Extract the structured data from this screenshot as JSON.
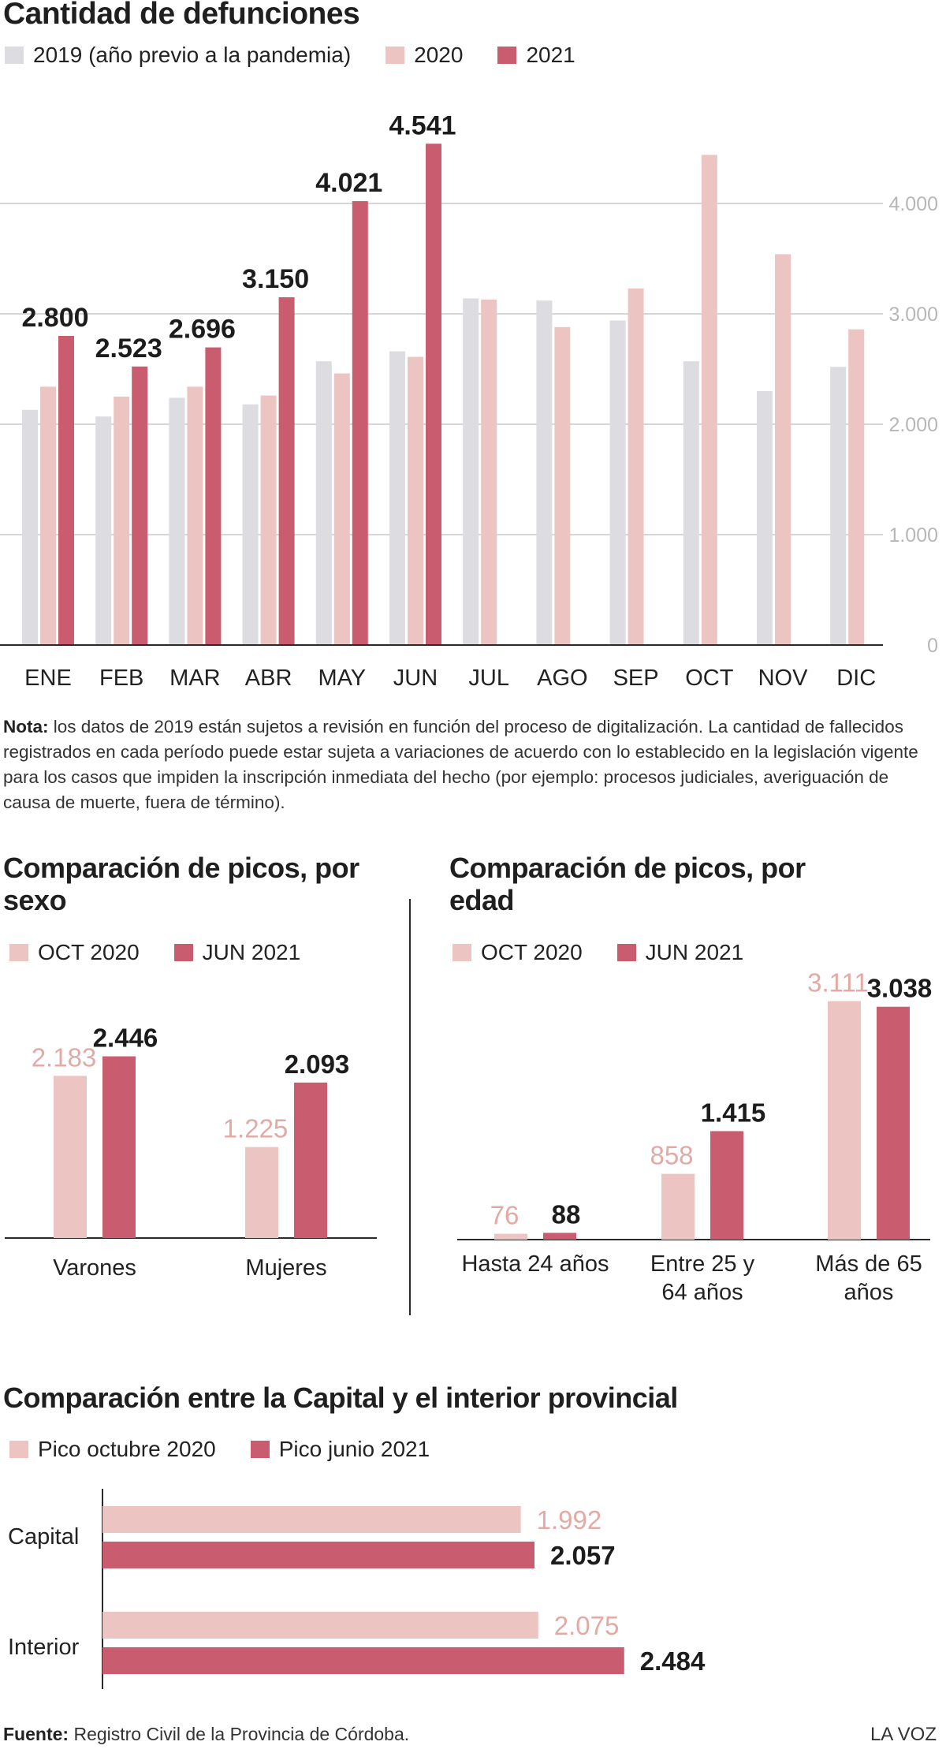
{
  "colors": {
    "c2019": "#dcdce1",
    "c2020": "#ecc4c1",
    "c2021": "#c95c6e",
    "grid": "#d6d6d6",
    "tick": "#b7b7b7",
    "label2020": "#e2aaa5"
  },
  "chart_data": [
    {
      "type": "bar",
      "title": "Cantidad de defunciones",
      "categories": [
        "ENE",
        "FEB",
        "MAR",
        "ABR",
        "MAY",
        "JUN",
        "JUL",
        "AGO",
        "SEP",
        "OCT",
        "NOV",
        "DIC"
      ],
      "series": [
        {
          "name": "2019 (año previo a la pandemia)",
          "values": [
            2130,
            2070,
            2240,
            2180,
            2570,
            2660,
            3140,
            3120,
            2940,
            2570,
            2300,
            2520
          ]
        },
        {
          "name": "2020",
          "values": [
            2340,
            2250,
            2340,
            2260,
            2460,
            2610,
            3130,
            2880,
            3230,
            4440,
            3540,
            2860
          ]
        },
        {
          "name": "2021",
          "values": [
            2800,
            2523,
            2696,
            3150,
            4021,
            4541,
            null,
            null,
            null,
            null,
            null,
            null
          ],
          "data_labels": [
            "2.800",
            "2.523",
            "2.696",
            "3.150",
            "4.021",
            "4.541"
          ]
        }
      ],
      "yticks": [
        "0",
        "1.000",
        "2.000",
        "3.000",
        "4.000"
      ],
      "ylim": [
        0,
        4600
      ],
      "grid": true,
      "legend": "top-left"
    },
    {
      "type": "bar",
      "title": "Comparación de picos, por sexo",
      "categories": [
        "Varones",
        "Mujeres"
      ],
      "series": [
        {
          "name": "OCT 2020",
          "values": [
            2183,
            1225
          ],
          "labels": [
            "2.183",
            "1.225"
          ]
        },
        {
          "name": "JUN 2021",
          "values": [
            2446,
            2093
          ],
          "labels": [
            "2.446",
            "2.093"
          ]
        }
      ],
      "legend": "top-left"
    },
    {
      "type": "bar",
      "title": "Comparación de picos, por edad",
      "categories": [
        "Hasta 24 años",
        "Entre 25 y 64 años",
        "Más de 65 años"
      ],
      "category_lines": [
        [
          "Hasta 24 años"
        ],
        [
          "Entre 25 y",
          "64 años"
        ],
        [
          "Más de 65",
          "años"
        ]
      ],
      "series": [
        {
          "name": "OCT 2020",
          "values": [
            76,
            858,
            3111
          ],
          "labels": [
            "76",
            "858",
            "3.111"
          ]
        },
        {
          "name": "JUN 2021",
          "values": [
            88,
            1415,
            3038
          ],
          "labels": [
            "88",
            "1.415",
            "3.038"
          ]
        }
      ],
      "legend": "top-left"
    },
    {
      "type": "bar",
      "orientation": "horizontal",
      "title": "Comparación entre la Capital y el interior provincial",
      "categories": [
        "Capital",
        "Interior"
      ],
      "series": [
        {
          "name": "Pico octubre 2020",
          "values": [
            1992,
            2075
          ],
          "labels": [
            "1.992",
            "2.075"
          ]
        },
        {
          "name": "Pico junio 2021",
          "values": [
            2057,
            2484
          ],
          "labels": [
            "2.057",
            "2.484"
          ]
        }
      ],
      "legend": "top-left"
    }
  ],
  "note": {
    "label": "Nota:",
    "text": " los datos de 2019 están sujetos a revisión en función del proceso de digitalización. La cantidad de fallecidos registrados en cada período puede estar sujeta a variaciones de acuerdo con lo establecido en la legislación vigente para los casos que impiden la inscripción inmediata del hecho (por ejemplo: procesos judiciales, averiguación de causa de muerte, fuera de término)."
  },
  "source": {
    "label": "Fuente:",
    "text": " Registro Civil de la Provincia de Córdoba."
  },
  "brand": "LA VOZ"
}
